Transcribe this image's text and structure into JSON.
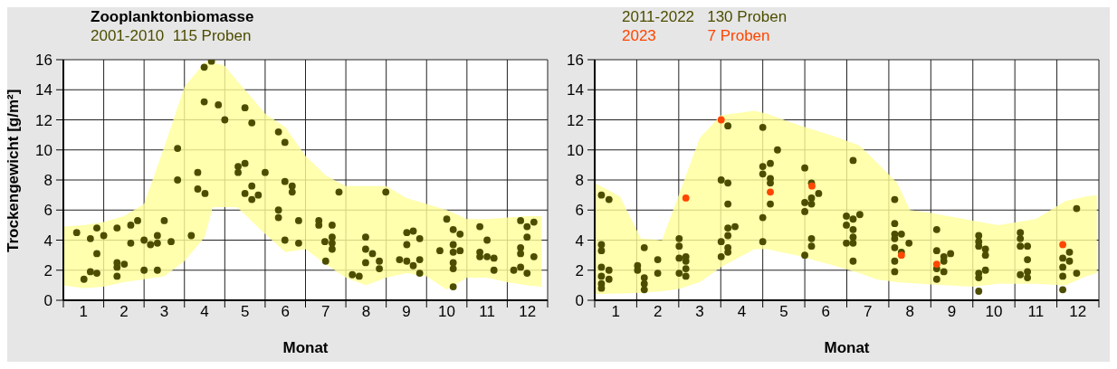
{
  "chart_data": [
    {
      "type": "scatter",
      "title": "Zooplanktonbiomasse",
      "ylabel": "Trockengewicht  [g/m²]",
      "xlabel": "Monat",
      "legend": "top left",
      "grid": true,
      "marker": "circle",
      "xlim": [
        0,
        12
      ],
      "ylim": [
        0,
        16
      ],
      "yticks": [
        0,
        2,
        4,
        6,
        8,
        10,
        12,
        14,
        16
      ],
      "xticks": [
        {
          "value": 0,
          "label": null
        },
        {
          "value": 0.5,
          "label": "1"
        },
        {
          "value": 1,
          "label": null
        },
        {
          "value": 1.5,
          "label": "2"
        },
        {
          "value": 2,
          "label": null
        },
        {
          "value": 2.5,
          "label": "3"
        },
        {
          "value": 3,
          "label": null
        },
        {
          "value": 3.5,
          "label": "4"
        },
        {
          "value": 4,
          "label": null
        },
        {
          "value": 4.5,
          "label": "5"
        },
        {
          "value": 5,
          "label": null
        },
        {
          "value": 5.5,
          "label": "6"
        },
        {
          "value": 6,
          "label": null
        },
        {
          "value": 6.5,
          "label": "7"
        },
        {
          "value": 7,
          "label": null
        },
        {
          "value": 7.5,
          "label": "8"
        },
        {
          "value": 8,
          "label": null
        },
        {
          "value": 8.5,
          "label": "9"
        },
        {
          "value": 9,
          "label": null
        },
        {
          "value": 9.5,
          "label": "10"
        },
        {
          "value": 10,
          "label": null
        },
        {
          "value": 10.5,
          "label": "11"
        },
        {
          "value": 11,
          "label": null
        },
        {
          "value": 11.5,
          "label": "12"
        },
        {
          "value": 12,
          "label": null
        }
      ],
      "series": [
        {
          "type": "area",
          "color": "#ffff99",
          "values": [
            null,
            null,
            null,
            null,
            null,
            null,
            null,
            null,
            null,
            null,
            null,
            null,
            null,
            null,
            null,
            null,
            null,
            null,
            null,
            null,
            null,
            null,
            null,
            null,
            null,
            null,
            null
          ],
          "x": [
            0,
            0.5,
            1,
            1.5,
            2,
            2.5,
            3,
            3.5,
            3.7,
            4,
            4.3,
            4.5,
            5,
            5.5,
            6,
            6.5,
            7,
            7.5,
            8,
            8.5,
            9,
            9.5,
            10,
            10.5,
            11,
            11.5,
            11.85
          ],
          "lower": [
            1.0,
            0.8,
            0.9,
            1.2,
            1.4,
            1.6,
            2.6,
            4.2,
            6.2,
            6.2,
            6.2,
            5.7,
            4.4,
            3.2,
            3.4,
            2.4,
            1.5,
            1.0,
            1.5,
            1.8,
            1.6,
            0.7,
            1.5,
            1.5,
            1.2,
            1.0,
            0.9
          ],
          "upper": [
            4.9,
            5.0,
            5.2,
            5.6,
            6.4,
            10.2,
            14.2,
            15.8,
            15.8,
            15.6,
            14.6,
            14.0,
            12.4,
            11.5,
            9.6,
            8.3,
            7.6,
            7.6,
            7.6,
            6.8,
            6.4,
            6.0,
            5.4,
            5.4,
            5.5,
            5.6,
            5.6
          ]
        },
        {
          "type": "scatter",
          "name": "2001-2010  115 Proben",
          "color": "#4d4d00",
          "x": [
            0.33,
            0.67,
            0.83,
            1.0,
            0.83,
            0.67,
            0.83,
            0.51,
            1.33,
            1.67,
            1.84,
            1.67,
            1.33,
            1.51,
            1.33,
            1.33,
            2.0,
            2.16,
            2.33,
            2.33,
            2.5,
            2.67,
            2.0,
            2.33,
            2.83,
            2.83,
            3.17,
            3.33,
            3.33,
            3.51,
            3.49,
            3.67,
            3.49,
            3.84,
            4.0,
            4.5,
            4.67,
            4.33,
            4.5,
            4.33,
            5.0,
            4.67,
            4.5,
            4.67,
            4.83,
            5.33,
            5.49,
            5.49,
            5.67,
            5.67,
            5.33,
            5.33,
            5.83,
            5.49,
            5.83,
            6.33,
            6.33,
            6.66,
            6.66,
            6.48,
            6.66,
            6.66,
            6.5,
            6.83,
            7.49,
            7.49,
            7.66,
            7.83,
            7.83,
            7.49,
            7.16,
            7.33,
            7.99,
            8.51,
            8.67,
            8.83,
            8.51,
            8.33,
            8.51,
            8.67,
            8.83,
            8.83,
            9.33,
            9.5,
            9.66,
            9.83,
            9.66,
            9.66,
            9.83,
            9.66,
            9.66,
            9.66,
            10.32,
            10.5,
            10.32,
            10.32,
            10.5,
            10.67,
            10.67,
            11.33,
            11.49,
            11.66,
            11.49,
            11.33,
            11.33,
            11.66,
            11.33,
            11.16,
            11.49
          ],
          "values": [
            4.5,
            4.1,
            4.8,
            4.3,
            3.1,
            1.9,
            1.8,
            1.4,
            4.8,
            5.0,
            5.3,
            3.8,
            2.5,
            2.4,
            2.2,
            1.6,
            4.0,
            3.7,
            4.3,
            3.8,
            5.3,
            3.9,
            2.0,
            2.0,
            10.1,
            8.0,
            4.3,
            8.5,
            7.4,
            7.1,
            15.5,
            15.9,
            13.2,
            13.0,
            12.0,
            12.8,
            11.8,
            8.9,
            9.1,
            8.5,
            8.5,
            7.6,
            7.1,
            6.7,
            7.0,
            11.2,
            10.5,
            7.9,
            7.6,
            7.2,
            6.0,
            5.5,
            5.3,
            4.0,
            3.8,
            5.3,
            5.0,
            5.0,
            4.2,
            3.9,
            3.8,
            3.4,
            2.6,
            7.2,
            4.2,
            3.4,
            3.1,
            2.6,
            2.1,
            2.5,
            1.7,
            1.6,
            7.2,
            4.5,
            4.6,
            4.1,
            3.7,
            2.7,
            2.6,
            2.3,
            2.7,
            1.8,
            3.3,
            5.4,
            4.7,
            4.4,
            3.7,
            3.2,
            3.3,
            2.5,
            2.1,
            0.9,
            4.9,
            4.0,
            3.2,
            2.9,
            2.9,
            2.8,
            2.0,
            5.3,
            4.9,
            5.2,
            4.2,
            3.5,
            3.1,
            2.9,
            2.2,
            2.0,
            1.8
          ]
        }
      ]
    },
    {
      "type": "scatter",
      "xlabel": "Monat",
      "legend": "top left",
      "grid": true,
      "marker": "circle",
      "xlim": [
        0,
        12
      ],
      "ylim": [
        0,
        16
      ],
      "yticks": [
        0,
        2,
        4,
        6,
        8,
        10,
        12,
        14,
        16
      ],
      "xticks": [
        {
          "value": 0,
          "label": null
        },
        {
          "value": 0.5,
          "label": "1"
        },
        {
          "value": 1,
          "label": null
        },
        {
          "value": 1.5,
          "label": "2"
        },
        {
          "value": 2,
          "label": null
        },
        {
          "value": 2.5,
          "label": "3"
        },
        {
          "value": 3,
          "label": null
        },
        {
          "value": 3.5,
          "label": "4"
        },
        {
          "value": 4,
          "label": null
        },
        {
          "value": 4.5,
          "label": "5"
        },
        {
          "value": 5,
          "label": null
        },
        {
          "value": 5.5,
          "label": "6"
        },
        {
          "value": 6,
          "label": null
        },
        {
          "value": 6.5,
          "label": "7"
        },
        {
          "value": 7,
          "label": null
        },
        {
          "value": 7.5,
          "label": "8"
        },
        {
          "value": 8,
          "label": null
        },
        {
          "value": 8.5,
          "label": "9"
        },
        {
          "value": 9,
          "label": null
        },
        {
          "value": 9.5,
          "label": "10"
        },
        {
          "value": 10,
          "label": null
        },
        {
          "value": 10.5,
          "label": "11"
        },
        {
          "value": 11,
          "label": null
        },
        {
          "value": 11.5,
          "label": "12"
        },
        {
          "value": 12,
          "label": null
        }
      ],
      "series": [
        {
          "type": "area",
          "color": "#ffff99",
          "values": [
            null,
            null,
            null,
            null,
            null,
            null,
            null,
            null,
            null,
            null,
            null,
            null,
            null,
            null,
            null,
            null,
            null,
            null,
            null,
            null,
            null,
            null
          ],
          "x": [
            0,
            0.6,
            1.1,
            1.6,
            2,
            2.5,
            3,
            3.8,
            4.1,
            4.8,
            5.7,
            6.3,
            6.7,
            7.2,
            7.5,
            8,
            9,
            9.6,
            10.5,
            11.2,
            11.7,
            11.95
          ],
          "lower": [
            0.4,
            0.45,
            0.5,
            0.6,
            0.75,
            1.2,
            2.2,
            3.4,
            3.4,
            3.0,
            2.3,
            1.8,
            1.4,
            1.2,
            1.15,
            1.05,
            0.9,
            1.1,
            1.1,
            1.0,
            1.6,
            1.8
          ],
          "upper": [
            7.8,
            6.9,
            4.1,
            4.0,
            7.0,
            10.8,
            12.3,
            12.6,
            12.4,
            11.7,
            10.9,
            10.3,
            9.2,
            7.8,
            6.0,
            5.8,
            5.3,
            5.0,
            5.4,
            6.6,
            6.9,
            7.0
          ]
        },
        {
          "type": "scatter",
          "name": "2011-2022   130 Proben",
          "color": "#4d4d00",
          "x": [
            0.16,
            0.34,
            0.16,
            0.16,
            0.16,
            0.34,
            0.16,
            0.34,
            0.16,
            0.16,
            1.18,
            1.02,
            1.02,
            1.18,
            1.18,
            1.18,
            1.5,
            1.5,
            2.01,
            2.01,
            2.01,
            2.17,
            2.17,
            2.01,
            2.17,
            2.17,
            3.17,
            3.01,
            3.17,
            3.17,
            3.17,
            3.34,
            3.17,
            3.01,
            3.17,
            3.17,
            3.01,
            4.0,
            4.35,
            4.0,
            4.18,
            4.0,
            4.18,
            4.18,
            4.18,
            4.0,
            4.0,
            5.0,
            5.16,
            5.33,
            5.0,
            5.16,
            5.16,
            5.0,
            5.16,
            5.16,
            5.0,
            6.15,
            5.99,
            6.15,
            6.31,
            5.99,
            6.15,
            6.15,
            5.99,
            6.15,
            6.15,
            7.14,
            7.14,
            7.14,
            7.3,
            7.14,
            7.48,
            7.14,
            7.3,
            7.14,
            7.14,
            8.14,
            8.14,
            8.31,
            8.47,
            8.31,
            8.14,
            8.31,
            8.14,
            9.14,
            9.14,
            9.14,
            9.3,
            9.3,
            9.3,
            9.14,
            9.14,
            9.14,
            10.13,
            10.13,
            10.13,
            10.3,
            10.3,
            10.3,
            10.13,
            10.3,
            11.47,
            11.3,
            11.14,
            11.3,
            11.14,
            11.14,
            11.47,
            11.14
          ],
          "values": [
            7.0,
            6.7,
            3.7,
            3.3,
            2.2,
            2.0,
            1.6,
            1.4,
            1.1,
            0.8,
            3.5,
            2.3,
            2.0,
            1.5,
            1.1,
            0.7,
            2.7,
            1.8,
            4.1,
            3.6,
            2.8,
            2.9,
            2.6,
            1.8,
            2.1,
            1.6,
            11.6,
            8.0,
            7.8,
            6.4,
            4.8,
            4.9,
            4.3,
            3.9,
            3.5,
            3.2,
            2.9,
            11.5,
            10.0,
            8.9,
            9.1,
            8.4,
            8.1,
            7.8,
            6.4,
            5.5,
            3.9,
            8.8,
            7.8,
            7.1,
            6.5,
            6.8,
            6.4,
            5.9,
            4.1,
            3.6,
            3.0,
            9.3,
            5.6,
            5.4,
            5.7,
            5.0,
            4.7,
            4.2,
            3.8,
            3.8,
            2.6,
            6.7,
            5.1,
            4.4,
            4.4,
            4.1,
            3.8,
            3.5,
            3.2,
            2.6,
            1.9,
            4.7,
            3.3,
            2.9,
            3.1,
            2.6,
            2.1,
            1.9,
            1.4,
            4.3,
            3.9,
            3.6,
            3.4,
            3.0,
            2.0,
            1.8,
            1.5,
            0.6,
            4.5,
            4.1,
            3.6,
            3.6,
            2.7,
            1.9,
            1.7,
            1.5,
            6.1,
            3.2,
            2.8,
            2.6,
            2.2,
            1.6,
            1.8,
            0.7
          ]
        },
        {
          "type": "scatter",
          "name": "2023            7 Proben",
          "color": "#ff4500",
          "x": [
            2.17,
            3.01,
            4.18,
            5.17,
            7.3,
            8.14,
            11.14
          ],
          "values": [
            6.8,
            12.0,
            7.2,
            7.6,
            3.0,
            2.4,
            3.7
          ]
        }
      ]
    }
  ]
}
